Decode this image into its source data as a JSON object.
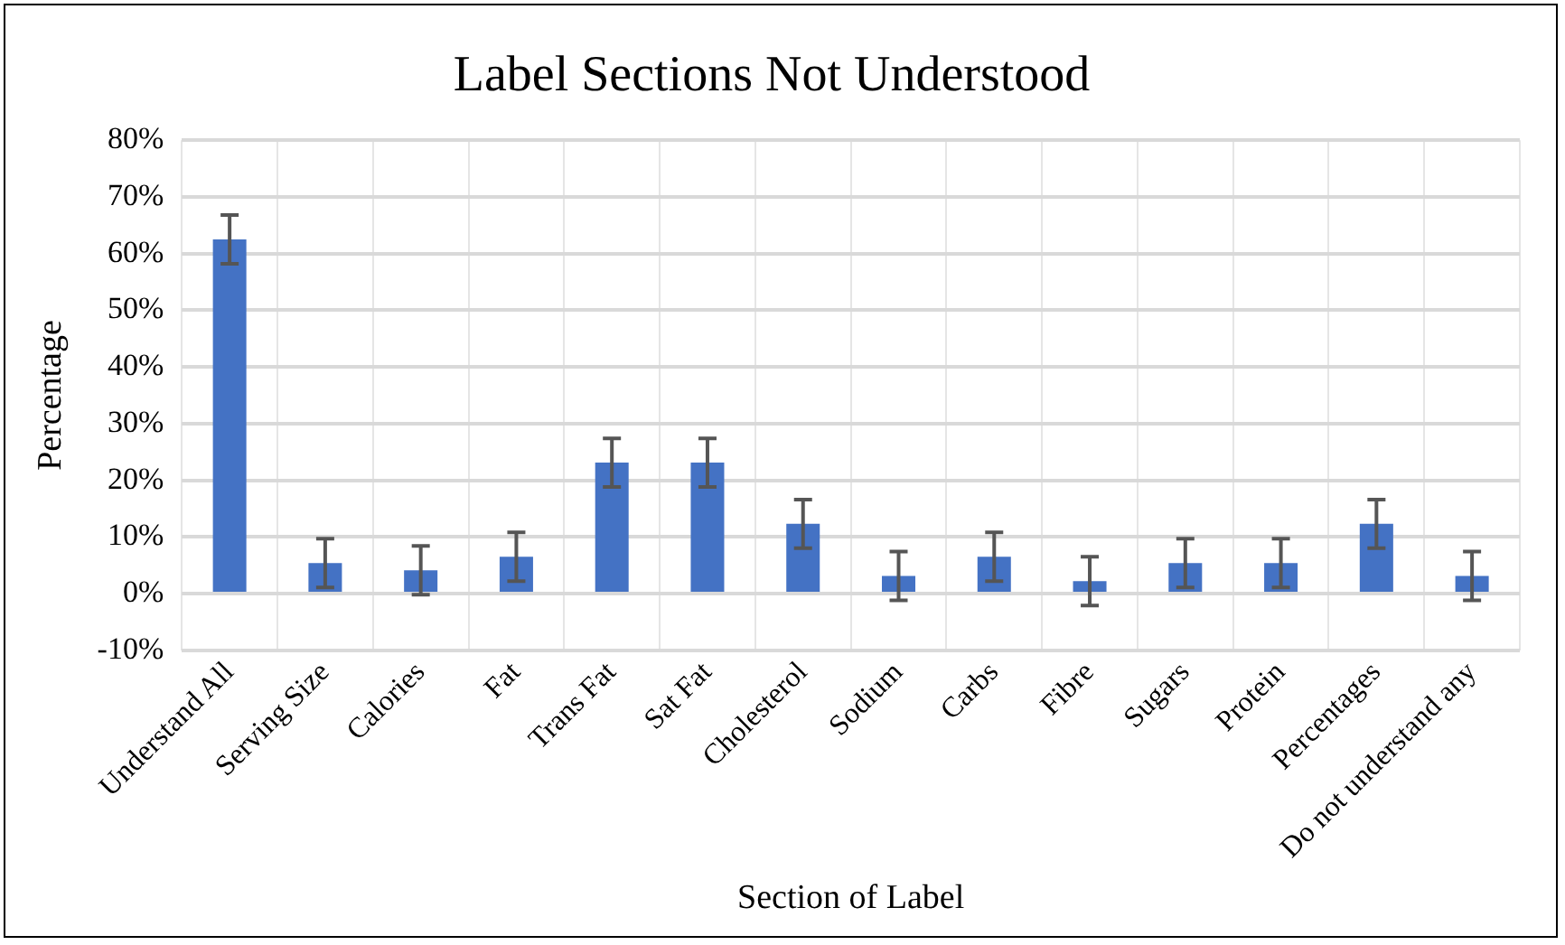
{
  "chart_data": {
    "type": "bar",
    "title": "Label Sections Not Understood",
    "xlabel": "Section of Label",
    "ylabel": "Percentage",
    "categories": [
      "Understand All",
      "Serving Size",
      "Calories",
      "Fat",
      "Trans Fat",
      "Sat Fat",
      "Cholesterol",
      "Sodium",
      "Carbs",
      "Fibre",
      "Sugars",
      "Protein",
      "Percentages",
      "Do not understand any"
    ],
    "values": [
      62.5,
      5.4,
      4.1,
      6.5,
      23.1,
      23.1,
      12.3,
      3.1,
      6.5,
      2.2,
      5.4,
      5.4,
      12.3,
      3.1
    ],
    "errors": [
      4.3,
      4.3,
      4.3,
      4.3,
      4.3,
      4.3,
      4.3,
      4.3,
      4.3,
      4.3,
      4.3,
      4.3,
      4.3,
      4.3
    ],
    "color": "#4472c4",
    "ylim": [
      -10,
      80
    ],
    "yticks": [
      {
        "value": -10,
        "label": "-10%"
      },
      {
        "value": 0,
        "label": "0%"
      },
      {
        "value": 10,
        "label": "10%"
      },
      {
        "value": 20,
        "label": "20%"
      },
      {
        "value": 30,
        "label": "30%"
      },
      {
        "value": 40,
        "label": "40%"
      },
      {
        "value": 50,
        "label": "50%"
      },
      {
        "value": 60,
        "label": "60%"
      },
      {
        "value": 70,
        "label": "70%"
      },
      {
        "value": 80,
        "label": "80%"
      }
    ],
    "grid": true,
    "legend": false
  }
}
